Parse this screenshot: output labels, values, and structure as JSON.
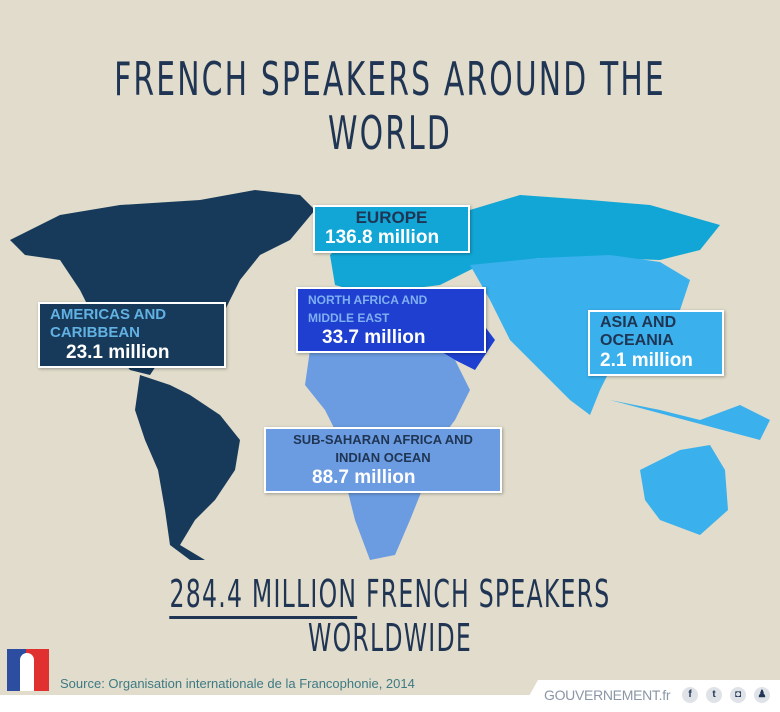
{
  "title": "FRENCH SPEAKERS AROUND THE WORLD",
  "regions": [
    {
      "key": "americas",
      "title": "AMERICAS AND CARIBBEAN",
      "value": "23.1 million",
      "color": "#173a5a",
      "title_color": "#62b1e3"
    },
    {
      "key": "europe",
      "title": "EUROPE",
      "value": "136.8 million",
      "color": "#12a6d6",
      "title_color": "#1f3553"
    },
    {
      "key": "nafrica",
      "title": "NORTH AFRICA AND MIDDLE EAST",
      "value": "33.7 million",
      "color": "#1f3fd0",
      "title_color": "#7fb0f0"
    },
    {
      "key": "asia",
      "title": "ASIA AND OCEANIA",
      "value": "2.1 million",
      "color": "#3ab0ec",
      "title_color": "#1f3553"
    },
    {
      "key": "ssafrica",
      "title": "SUB-SAHARAN AFRICA AND INDIAN OCEAN",
      "value": "88.7 million",
      "color": "#6b9be0",
      "title_color": "#1f3553"
    }
  ],
  "total": {
    "highlight": "284.4 MILLION",
    "rest": " FRENCH SPEAKERS WORLDWIDE"
  },
  "source": "Source: Organisation internationale de la Francophonie, 2014",
  "brand": "GOUVERNEMENT.fr",
  "social": [
    {
      "icon": "facebook-icon",
      "glyph": "f"
    },
    {
      "icon": "twitter-icon",
      "glyph": "t"
    },
    {
      "icon": "instagram-icon",
      "glyph": "◘"
    },
    {
      "icon": "snapchat-icon",
      "glyph": "♟"
    }
  ]
}
